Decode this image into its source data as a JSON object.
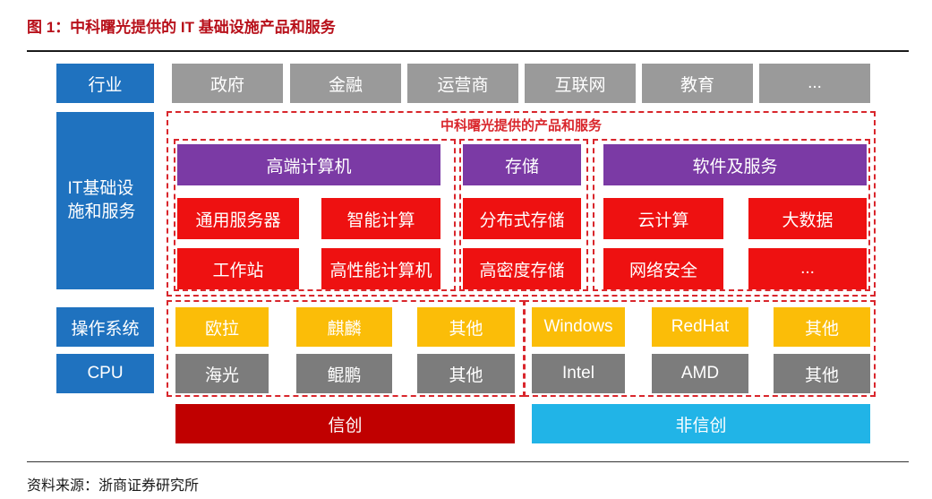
{
  "figure": {
    "title": "图 1：中科曙光提供的 IT 基础设施产品和服务",
    "source": "资料来源：浙商证券研究所"
  },
  "rows": {
    "industry": "行业",
    "it_infra": "IT基础设施和服务",
    "os": "操作系统",
    "cpu": "CPU"
  },
  "industries": [
    "政府",
    "金融",
    "运营商",
    "互联网",
    "教育",
    "..."
  ],
  "products": {
    "header": "中科曙光提供的产品和服务",
    "hpc": {
      "title": "高端计算机",
      "items": [
        "通用服务器",
        "智能计算",
        "工作站",
        "高性能计算机"
      ]
    },
    "storage": {
      "title": "存储",
      "items": [
        "分布式存储",
        "高密度存储"
      ]
    },
    "software": {
      "title": "软件及服务",
      "items": [
        "云计算",
        "大数据",
        "网络安全",
        "..."
      ]
    }
  },
  "xinchuang_os": [
    "欧拉",
    "麒麟",
    "其他"
  ],
  "non_xinchuang_os": [
    "Windows",
    "RedHat",
    "其他"
  ],
  "xinchuang_cpu": [
    "海光",
    "鲲鹏",
    "其他"
  ],
  "non_xinchuang_cpu": [
    "Intel",
    "AMD",
    "其他"
  ],
  "bottom": {
    "xinchuang": "信创",
    "non_xinchuang": "非信创"
  },
  "colors": {
    "row_label": "#1f72bf",
    "industry": "#9a9a9a",
    "category": "#7b3aa5",
    "product": "#ee1111",
    "os": "#fbbd08",
    "cpu": "#7c7c7c",
    "xinchuang": "#c00000",
    "non_xinchuang": "#21b4e7",
    "dashed": "#d9262c"
  }
}
